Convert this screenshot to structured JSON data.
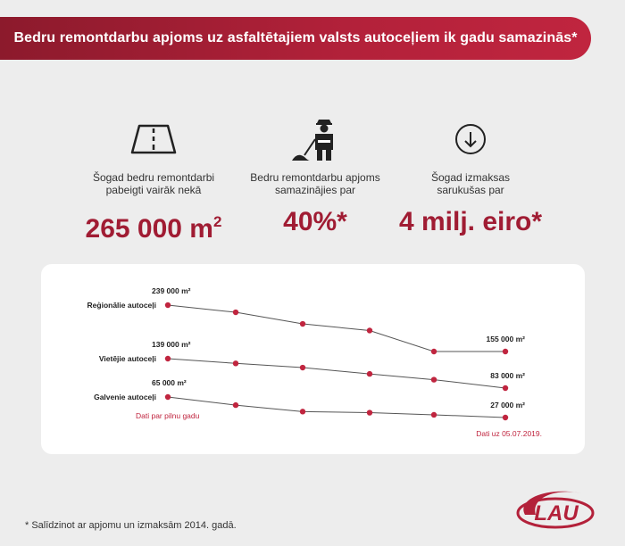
{
  "banner": {
    "title": "Bedru remontdarbu apjoms uz asfaltētajiem valsts autoceļiem ik gadu samazinās*"
  },
  "stats": [
    {
      "icon": "road-icon",
      "caption": "Šogad bedru remontdarbi\npabeigti vairāk nekā",
      "value": "265 000 m",
      "value_sup": "2"
    },
    {
      "icon": "road-worker-icon",
      "caption": "Bedru remontdarbu apjoms\nsamazinājies par",
      "value": "40%*",
      "value_sup": ""
    },
    {
      "icon": "arrow-down-circle-icon",
      "caption": "Šogad izmaksas\nsarukušas par",
      "value": "4 milj. eiro*",
      "value_sup": ""
    }
  ],
  "chart_data": {
    "type": "line",
    "series": [
      {
        "name": "Reģionālie autoceļi",
        "start_label": "239 000 m²",
        "end_label": "155 000 m²",
        "values": [
          239000,
          226000,
          205000,
          193000,
          155000,
          155000
        ]
      },
      {
        "name": "Vietējie autoceļi",
        "start_label": "139 000 m²",
        "end_label": "83 000 m²",
        "values": [
          139000,
          130000,
          122000,
          110000,
          99000,
          83000
        ]
      },
      {
        "name": "Galvenie autoceļi",
        "start_label": "65 000 m²",
        "end_label": "27 000 m²",
        "values": [
          65000,
          50000,
          38000,
          36000,
          32000,
          27000
        ]
      }
    ],
    "notes": {
      "full_year": "Dati par pilnu gadu",
      "partial": "Dati uz 05.07.2019."
    },
    "colors": {
      "line": "#555555",
      "point": "#c0253f",
      "note": "#c0253f"
    }
  },
  "footnote": "* Salīdzinot ar apjomu un izmaksām 2014. gadā.",
  "logo": {
    "text": "LAU",
    "color": "#b3213a"
  }
}
